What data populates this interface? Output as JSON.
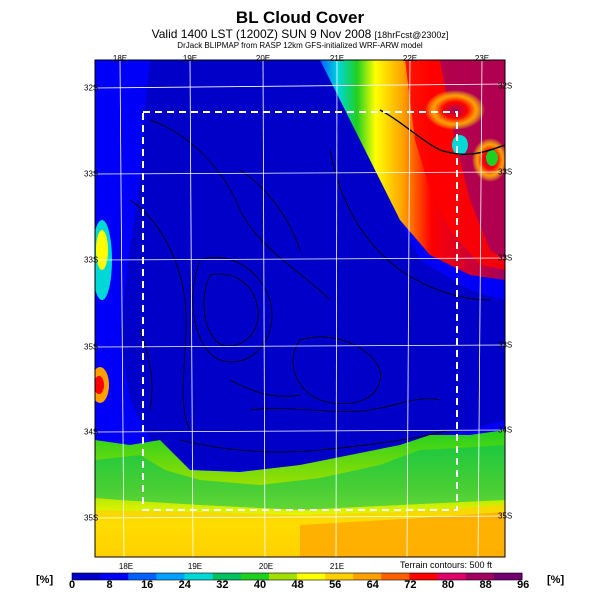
{
  "header": {
    "title": "BL Cloud Cover",
    "subtitle_main": "Valid 1400 LST (1200Z) SUN 9 Nov 2008",
    "subtitle_small": "[18hrFcst@2300z]",
    "credit": "DrJack BLIPMAP from RASP 12km GFS-initialized WRF-ARW model"
  },
  "axes": {
    "lon_top": [
      "18E",
      "19E",
      "20E",
      "21E",
      "22E",
      "23E"
    ],
    "lon_bottom": [
      "18E",
      "19E",
      "20E",
      "21E"
    ],
    "lat_left": [
      "32S",
      "33S",
      "33S",
      "35S",
      "34S",
      "35S"
    ],
    "lat_right": [
      "32S",
      "33S",
      "33S",
      "33S",
      "34S",
      "35S"
    ]
  },
  "footer": {
    "terrain_note": "Terrain contours: 500 ft"
  },
  "colorbar": {
    "unit_left": "[%]",
    "unit_right": "[%]",
    "ticks": [
      "0",
      "8",
      "16",
      "24",
      "32",
      "40",
      "48",
      "56",
      "64",
      "72",
      "80",
      "88",
      "96"
    ],
    "colors": [
      "#0000c8",
      "#0000f8",
      "#0060ff",
      "#00a0ff",
      "#00d8d8",
      "#00c060",
      "#20d020",
      "#a0e000",
      "#ffff00",
      "#ffd000",
      "#ffa000",
      "#ff6000",
      "#ff0000",
      "#e0006a",
      "#a00060",
      "#700070"
    ]
  }
}
